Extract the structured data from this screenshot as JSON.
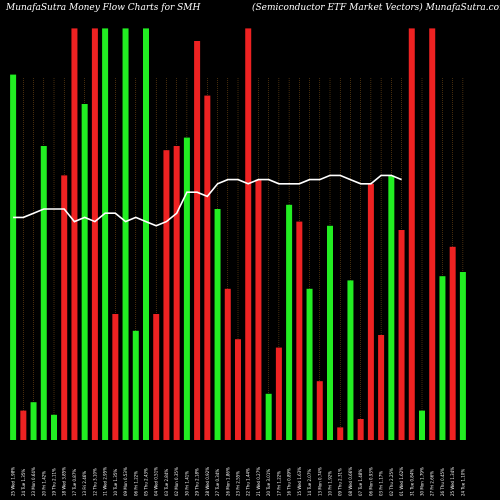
{
  "header": {
    "left_title": "MunafaSutra  Money Flow  Charts for SMH",
    "right_title": "(Semiconductor ETF Market Vectors) MunafaSutra.com"
  },
  "colors": {
    "background": "#000000",
    "up": "#22ee22",
    "down": "#ee2222",
    "line": "#ffffff",
    "grid": "#8b5a1a"
  },
  "chart_data": {
    "type": "bar",
    "title": "MunafaSutra  Money Flow  Charts for SMH",
    "subtitle": "(Semiconductor ETF Market Vectors) MunafaSutra.com",
    "ylim": [
      0,
      100
    ],
    "grid": true,
    "categories": [
      "25 Wed 1.98%",
      "24 Tue 1.35%",
      "23 Mon 0.64%",
      "20 Fri 1.42%",
      "19 Thu 2.11%",
      "18 Wed 3.85%",
      "17 Tue 0.87%",
      "13 Fri 2.46%",
      "12 Thu 3.10%",
      "11 Wed 2.95%",
      "10 Tue 1.35%",
      "09 Mon 0.53%",
      "06 Fri 1.22%",
      "05 Thu 2.43%",
      "04 Wed 0.51%",
      "03 Tue 2.84%",
      "02 Mon 0.35%",
      "30 Fri 1.41%",
      "29 Thu 2.18%",
      "28 Wed 0.92%",
      "27 Tue 0.34%",
      "26 Mon 1.86%",
      "23 Fri 2.55%",
      "22 Thu 1.44%",
      "21 Wed 0.27%",
      "20 Tue 3.01%",
      "17 Fri 1.22%",
      "16 Thu 0.89%",
      "15 Wed 1.63%",
      "14 Tue 2.07%",
      "13 Mon 0.74%",
      "10 Fri 1.92%",
      "09 Thu 2.31%",
      "08 Wed 0.66%",
      "07 Tue 1.48%",
      "06 Mon 0.93%",
      "03 Fri 1.17%",
      "02 Thu 2.25%",
      "01 Wed 1.62%",
      "31 Tue 0.84%",
      "30 Mon 1.79%",
      "27 Fri 2.66%",
      "26 Thu 0.45%",
      "25 Wed 1.34%",
      "24 Tue 1.10%"
    ],
    "directions": [
      "up",
      "down",
      "up",
      "up",
      "up",
      "down",
      "down",
      "up",
      "down",
      "up",
      "down",
      "up",
      "up",
      "up",
      "down",
      "down",
      "down",
      "up",
      "down",
      "down",
      "up",
      "down",
      "down",
      "down",
      "down",
      "up",
      "down",
      "up",
      "down",
      "up",
      "down",
      "up",
      "down",
      "up",
      "down",
      "down",
      "down",
      "up",
      "down",
      "down",
      "up",
      "down",
      "up",
      "down",
      "up"
    ],
    "values": [
      87,
      7,
      9,
      70,
      6,
      63,
      98,
      80,
      98,
      98,
      30,
      98,
      26,
      98,
      30,
      69,
      70,
      72,
      95,
      82,
      55,
      36,
      24,
      98,
      62,
      11,
      22,
      56,
      52,
      36,
      14,
      51,
      3,
      38,
      5,
      61,
      25,
      63,
      50,
      98,
      7,
      98,
      39,
      46,
      40
    ],
    "line": [
      53,
      53,
      54,
      55,
      55,
      55,
      52,
      53,
      52,
      54,
      54,
      52,
      53,
      52,
      51,
      52,
      54,
      59,
      59,
      58,
      61,
      62,
      62,
      61,
      62,
      62,
      61,
      61,
      61,
      62,
      62,
      63,
      63,
      62,
      61,
      61,
      63,
      63,
      62
    ]
  }
}
